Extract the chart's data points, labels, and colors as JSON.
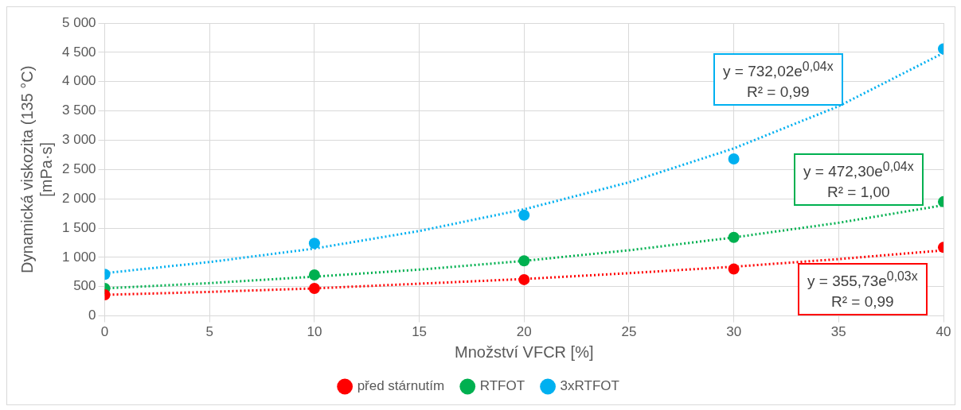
{
  "chart_data": {
    "type": "scatter",
    "xlabel": "Množství VFCR [%]",
    "ylabel": "Dynamická viskozita (135 °C)\n[mPa·s]",
    "xlim": [
      0,
      40
    ],
    "xticks": [
      0,
      5,
      10,
      15,
      20,
      25,
      30,
      35,
      40
    ],
    "ylim": [
      0,
      5000
    ],
    "yticks": [
      0,
      500,
      {
        "value": 1000,
        "label": "1 000"
      },
      {
        "value": 1500,
        "label": "1 500"
      },
      {
        "value": 2000,
        "label": "2 000"
      },
      {
        "value": 2500,
        "label": "2 500"
      },
      {
        "value": 3000,
        "label": "3 000"
      },
      {
        "value": 3500,
        "label": "3 500"
      },
      {
        "value": 4000,
        "label": "4 000"
      },
      {
        "value": 4500,
        "label": "4 500"
      },
      {
        "value": 5000,
        "label": "5 000"
      }
    ],
    "grid": true,
    "legend": "bottom",
    "marker": "circle",
    "series": [
      {
        "name": "před stárnutím",
        "color": "#ff0000",
        "x": [
          0,
          10,
          20,
          30,
          40
        ],
        "values": [
          360,
          470,
          620,
          800,
          1170
        ]
      },
      {
        "name": "RTFOT",
        "color": "#00b050",
        "x": [
          0,
          10,
          20,
          30,
          40
        ],
        "values": [
          470,
          700,
          940,
          1340,
          1950
        ]
      },
      {
        "name": "3xRTFOT",
        "color": "#00b0f0",
        "x": [
          0,
          10,
          20,
          30,
          40
        ],
        "values": [
          710,
          1240,
          1720,
          2680,
          4560
        ]
      },
      {
        "type": "line",
        "color": "#ff0000",
        "marker": "none",
        "line_style": "dotted",
        "x": [
          0,
          5,
          10,
          15,
          20,
          25,
          30,
          35,
          40
        ],
        "values": [
          360,
          410,
          470,
          550,
          630,
          730,
          840,
          970,
          1120
        ]
      },
      {
        "type": "line",
        "color": "#00b050",
        "marker": "none",
        "line_style": "dotted",
        "x": [
          0,
          5,
          10,
          15,
          20,
          25,
          30,
          35,
          40
        ],
        "values": [
          470,
          560,
          670,
          790,
          940,
          1120,
          1340,
          1590,
          1890
        ]
      },
      {
        "type": "line",
        "color": "#00b0f0",
        "marker": "none",
        "line_style": "dotted",
        "x": [
          0,
          5,
          10,
          15,
          20,
          25,
          30,
          35,
          40
        ],
        "values": [
          730,
          920,
          1150,
          1450,
          1820,
          2280,
          2860,
          3580,
          4490
        ]
      }
    ],
    "annotations": [
      "y = 355,73e$^{0,03x}$\nR² = 0,99",
      "y = 472,30e$^{0,04x}$\nR² = 1,00",
      "y = 732,02e$^{0,04x}$\nR² = 0,99"
    ]
  }
}
